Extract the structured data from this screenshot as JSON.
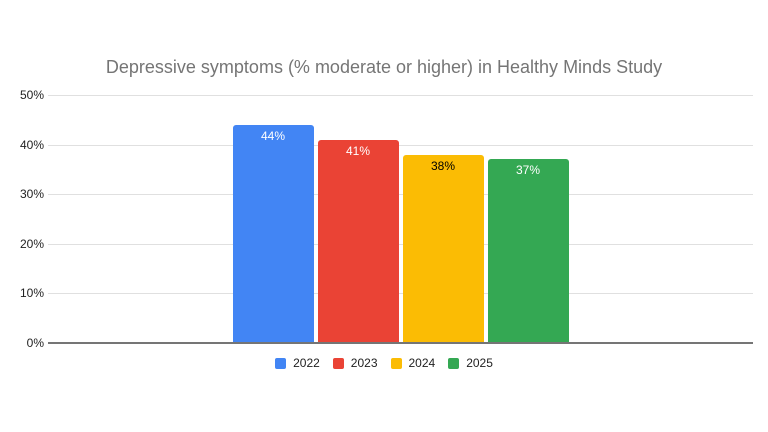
{
  "chart": {
    "title": "Depressive symptoms (% moderate or higher) in Healthy Minds Study"
  },
  "chart_data": {
    "type": "bar",
    "title": "Depressive symptoms (% moderate or higher) in Healthy Minds Study",
    "categories": [
      ""
    ],
    "series": [
      {
        "name": "2022",
        "values": [
          44
        ],
        "data_label": "44%",
        "color": "#4285F4",
        "label_color": "#ffffff"
      },
      {
        "name": "2023",
        "values": [
          41
        ],
        "data_label": "41%",
        "color": "#EA4335",
        "label_color": "#ffffff"
      },
      {
        "name": "2024",
        "values": [
          38
        ],
        "data_label": "38%",
        "color": "#FBBC04",
        "label_color": "#000000"
      },
      {
        "name": "2025",
        "values": [
          37
        ],
        "data_label": "37%",
        "color": "#34A853",
        "label_color": "#ffffff"
      }
    ],
    "xlabel": "",
    "ylabel": "",
    "ylim": [
      0,
      50
    ],
    "yticks": [
      {
        "value": 0,
        "label": "0%"
      },
      {
        "value": 10,
        "label": "10%"
      },
      {
        "value": 20,
        "label": "20%"
      },
      {
        "value": 30,
        "label": "30%"
      },
      {
        "value": 40,
        "label": "40%"
      },
      {
        "value": 50,
        "label": "50%"
      }
    ],
    "grid": true,
    "legend_position": "bottom",
    "colors": {
      "gridline": "#e0e0e0",
      "axis_line": "#757575",
      "title_text": "#757575",
      "tick_text": "#1f1f1f"
    }
  }
}
